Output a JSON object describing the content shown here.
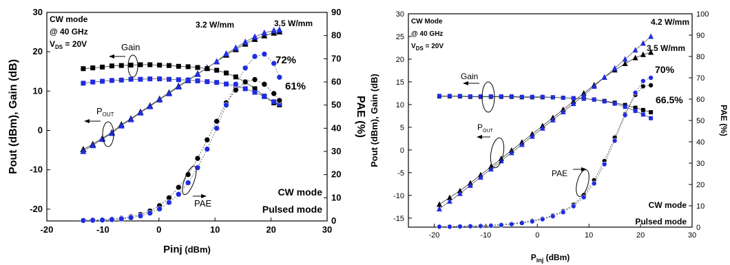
{
  "chart_data": [
    {
      "type": "scatter",
      "xlabel": "P",
      "xlabel_sub": "inj",
      "xlabel_unit": "(dBm)",
      "ylabel": "P",
      "ylabel_sub": "out",
      "ylabel_rest": "(dBm), Gain (dB)",
      "y2label": "PAE (%)",
      "xlim": [
        -20,
        30
      ],
      "ylim": [
        -23,
        30
      ],
      "y2lim": [
        0,
        90
      ],
      "xticks": [
        -20,
        -10,
        0,
        10,
        20,
        30
      ],
      "yticks": [
        -20,
        -10,
        0,
        10,
        20,
        30
      ],
      "y2ticks": [
        0,
        10,
        20,
        30,
        40,
        50,
        60,
        70,
        80,
        90
      ],
      "info_lines": [
        "CW mode",
        "@ 40 GHz",
        "V",
        "DS",
        "= 20V"
      ],
      "annotations": {
        "power_cw": "3.2 W/mm",
        "power_pulsed": "3.5 W/mm",
        "pae_pulsed": "72%",
        "pae_cw": "61%",
        "gain": "Gain",
        "pout": "P",
        "pout_sub": "OUT",
        "pae": "PAE"
      },
      "legend": [
        {
          "name": "CW mode",
          "color": "#000000"
        },
        {
          "name": "Pulsed mode",
          "color": "#1f2de0"
        }
      ],
      "x": [
        -13.5,
        -11.8,
        -10.1,
        -8.4,
        -6.7,
        -5.0,
        -3.3,
        -1.6,
        0.1,
        1.8,
        3.5,
        5.2,
        6.9,
        8.6,
        10.3,
        12.0,
        13.7,
        15.4,
        17.1,
        18.8,
        20.5,
        21.5
      ],
      "series": [
        {
          "name": "CW mode",
          "kind": "pout",
          "marker": "triangle",
          "color": "#000000",
          "values": [
            -4.8,
            -3.5,
            -2.0,
            -0.5,
            1.5,
            3.0,
            4.7,
            6.3,
            8.0,
            9.6,
            11.3,
            12.8,
            14.4,
            15.9,
            17.5,
            19.2,
            20.6,
            22.0,
            23.2,
            24.1,
            24.8,
            25.1
          ]
        },
        {
          "name": "Pulsed mode",
          "kind": "pout",
          "marker": "triangle",
          "color": "#1f2de0",
          "values": [
            -5.3,
            -3.8,
            -2.2,
            -0.7,
            1.2,
            2.8,
            4.5,
            6.1,
            7.8,
            9.4,
            11.1,
            12.7,
            14.3,
            15.9,
            17.5,
            19.5,
            21.0,
            22.5,
            23.8,
            24.8,
            25.4,
            25.6
          ]
        },
        {
          "name": "CW mode",
          "kind": "gain",
          "marker": "square",
          "color": "#000000",
          "values": [
            15.7,
            15.9,
            16.1,
            16.4,
            16.5,
            16.6,
            16.7,
            16.7,
            16.6,
            16.5,
            16.3,
            16.2,
            16.0,
            15.7,
            15.3,
            14.6,
            13.6,
            12.3,
            10.6,
            8.7,
            7.0,
            6.5
          ]
        },
        {
          "name": "Pulsed mode",
          "kind": "gain",
          "marker": "square",
          "color": "#1f2de0",
          "values": [
            12.0,
            12.3,
            12.5,
            12.7,
            12.8,
            13.0,
            13.0,
            13.1,
            13.1,
            13.0,
            12.9,
            12.8,
            12.6,
            12.4,
            12.2,
            11.8,
            11.3,
            10.6,
            9.7,
            8.6,
            7.3,
            6.8
          ]
        },
        {
          "name": "CW mode",
          "kind": "pae",
          "marker": "circle",
          "color": "#000000",
          "values": [
            0.3,
            0.4,
            0.5,
            0.8,
            1.2,
            1.8,
            2.8,
            4.3,
            6.6,
            10.0,
            14.5,
            20.0,
            27.0,
            35.0,
            43.0,
            51.0,
            56.5,
            60.0,
            61.0,
            59.0,
            55.0,
            52.0
          ]
        },
        {
          "name": "Pulsed mode",
          "kind": "pae",
          "marker": "circle",
          "color": "#1f2de0",
          "values": [
            0.2,
            0.3,
            0.4,
            0.6,
            0.9,
            1.4,
            2.2,
            3.4,
            5.2,
            8.0,
            11.5,
            16.5,
            23.0,
            31.0,
            40.0,
            50.0,
            59.0,
            66.0,
            71.0,
            72.0,
            68.0,
            62.0
          ]
        }
      ]
    },
    {
      "type": "scatter",
      "xlabel": "P",
      "xlabel_sub": "inj",
      "xlabel_unit": "(dBm)",
      "ylabel": "P",
      "ylabel_sub": "out",
      "ylabel_rest": "(dBm), Gain (dB)",
      "y2label": "PAE (%)",
      "xlim": [
        -25,
        30
      ],
      "ylim": [
        -17,
        30
      ],
      "y2lim": [
        0,
        100
      ],
      "xticks": [
        -20,
        -10,
        0,
        10,
        20,
        30
      ],
      "yticks": [
        -15,
        -10,
        -5,
        0,
        5,
        10,
        15,
        20,
        25,
        30
      ],
      "y2ticks": [
        0,
        10,
        20,
        30,
        40,
        50,
        60,
        70,
        80,
        90,
        100
      ],
      "info_lines": [
        "CW Mode",
        "@ 40 GHz",
        "V",
        "DS",
        "= 20V"
      ],
      "annotations": {
        "power_pulsed": "4.2 W/mm",
        "power_cw": "3.5 W/mm",
        "pae_pulsed": "70%",
        "pae_cw": "66.5%",
        "gain": "Gain",
        "pout": "P",
        "pout_sub": "OUT",
        "pae": "PAE"
      },
      "legend": [
        {
          "name": "CW mode",
          "color": "#000000"
        },
        {
          "name": "Pulsed mode",
          "color": "#1f2de0"
        }
      ],
      "x": [
        -19.0,
        -17.0,
        -15.0,
        -13.0,
        -11.0,
        -9.0,
        -7.0,
        -5.0,
        -3.0,
        -1.0,
        1.0,
        3.0,
        5.0,
        7.0,
        9.0,
        11.0,
        13.0,
        15.0,
        17.0,
        19.0,
        20.5,
        22.0
      ],
      "series": [
        {
          "name": "CW mode",
          "kind": "pout",
          "marker": "triangle",
          "color": "#000000",
          "values": [
            -12.0,
            -10.5,
            -9.0,
            -7.3,
            -5.5,
            -3.7,
            -1.9,
            -0.1,
            1.7,
            3.5,
            5.3,
            7.1,
            8.9,
            10.7,
            12.5,
            14.3,
            16.0,
            17.6,
            19.0,
            20.3,
            21.0,
            21.5
          ]
        },
        {
          "name": "Pulsed mode",
          "kind": "pout",
          "marker": "triangle",
          "color": "#1f2de0",
          "values": [
            -13.0,
            -11.3,
            -9.6,
            -7.8,
            -6.0,
            -4.2,
            -2.4,
            -0.6,
            1.2,
            3.0,
            4.8,
            6.6,
            8.4,
            10.2,
            12.0,
            14.0,
            16.0,
            18.0,
            20.0,
            22.0,
            23.5,
            25.0
          ]
        },
        {
          "name": "CW mode",
          "kind": "gain",
          "marker": "square",
          "color": "#000000",
          "values": [
            11.8,
            11.8,
            11.8,
            11.7,
            11.7,
            11.7,
            11.7,
            11.7,
            11.6,
            11.6,
            11.6,
            11.6,
            11.5,
            11.4,
            11.3,
            11.1,
            10.8,
            10.4,
            9.9,
            9.3,
            8.8,
            8.3
          ]
        },
        {
          "name": "Pulsed mode",
          "kind": "gain",
          "marker": "square",
          "color": "#1f2de0",
          "values": [
            11.9,
            11.9,
            11.9,
            11.8,
            11.8,
            11.8,
            11.8,
            11.8,
            11.7,
            11.7,
            11.7,
            11.6,
            11.5,
            11.4,
            11.3,
            11.1,
            10.7,
            10.2,
            9.5,
            8.6,
            7.8,
            7.0
          ]
        },
        {
          "name": "CW mode",
          "kind": "pae",
          "marker": "circle",
          "color": "#000000",
          "values": [
            0.2,
            0.3,
            0.4,
            0.5,
            0.7,
            0.9,
            1.2,
            1.6,
            2.2,
            3.0,
            4.0,
            5.5,
            7.5,
            10.5,
            15.0,
            22.0,
            31.0,
            42.0,
            53.0,
            62.0,
            66.0,
            66.5
          ]
        },
        {
          "name": "Pulsed mode",
          "kind": "pae",
          "marker": "circle",
          "color": "#1f2de0",
          "values": [
            0.2,
            0.2,
            0.3,
            0.4,
            0.5,
            0.7,
            1.0,
            1.4,
            1.9,
            2.7,
            3.7,
            5.1,
            7.0,
            9.8,
            14.0,
            20.5,
            29.5,
            40.5,
            52.5,
            63.0,
            68.5,
            70.0
          ]
        }
      ]
    }
  ]
}
